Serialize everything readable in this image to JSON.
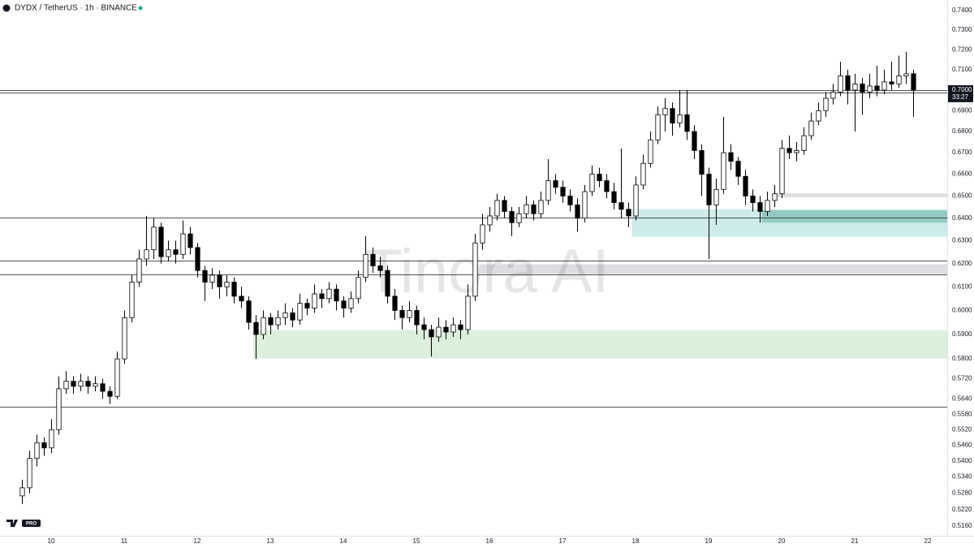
{
  "chart_data": {
    "type": "candlestick",
    "title": "DYDX / TetherUS · 1h · BINANCE",
    "watermark": "Tinora AI",
    "logo_badge": "PRO",
    "ylog": true,
    "xlim": [
      9.3,
      22.267
    ],
    "ylim": [
      0.5125,
      0.7455
    ],
    "xticks": [
      10,
      11,
      12,
      13,
      14,
      15,
      16,
      17,
      18,
      19,
      20,
      21,
      22
    ],
    "yticks": [
      {
        "value": 0.74,
        "label": "0.7400"
      },
      {
        "value": 0.73,
        "label": "0.7300"
      },
      {
        "value": 0.72,
        "label": "0.7200"
      },
      {
        "value": 0.71,
        "label": "0.7100"
      },
      {
        "value": 0.69,
        "label": "0.6900"
      },
      {
        "value": 0.68,
        "label": "0.6800"
      },
      {
        "value": 0.67,
        "label": "0.6700"
      },
      {
        "value": 0.66,
        "label": "0.6600"
      },
      {
        "value": 0.65,
        "label": "0.6500"
      },
      {
        "value": 0.64,
        "label": "0.6400"
      },
      {
        "value": 0.63,
        "label": "0.6300"
      },
      {
        "value": 0.62,
        "label": "0.6200"
      },
      {
        "value": 0.61,
        "label": "0.6100"
      },
      {
        "value": 0.6,
        "label": "0.6000"
      },
      {
        "value": 0.59,
        "label": "0.5900"
      },
      {
        "value": 0.58,
        "label": "0.5800"
      },
      {
        "value": 0.572,
        "label": "0.5720"
      },
      {
        "value": 0.564,
        "label": "0.5640"
      },
      {
        "value": 0.558,
        "label": "0.5580"
      },
      {
        "value": 0.552,
        "label": "0.5520"
      },
      {
        "value": 0.546,
        "label": "0.5460"
      },
      {
        "value": 0.54,
        "label": "0.5400"
      },
      {
        "value": 0.534,
        "label": "0.5340"
      },
      {
        "value": 0.528,
        "label": "0.5280"
      },
      {
        "value": 0.522,
        "label": "0.5220"
      },
      {
        "value": 0.516,
        "label": "0.5160"
      }
    ],
    "last_price": {
      "value": 0.7,
      "label": "0.7000"
    },
    "countdown": "33:27",
    "up_color": "#ffffff",
    "down_color": "#000000",
    "wick_color": "#000000",
    "levels": [
      0.6998,
      0.6987,
      0.6401,
      0.6212,
      0.6152,
      0.561
    ],
    "zones": [
      {
        "from": 12.77,
        "low": 0.5802,
        "high": 0.5918,
        "color": "rgba(76,175,80,0.2)"
      },
      {
        "from": 17.95,
        "low": 0.6317,
        "high": 0.644,
        "color": "rgba(38,166,154,0.22)"
      },
      {
        "from": 19.73,
        "low": 0.638,
        "high": 0.6435,
        "color": "rgba(38,140,120,0.35)"
      },
      {
        "from": 15.86,
        "low": 0.6155,
        "high": 0.6197,
        "color": "rgba(120,123,134,0.25)"
      },
      {
        "from": 19.91,
        "low": 0.6494,
        "high": 0.6512,
        "color": "rgba(120,123,134,0.25)"
      }
    ],
    "candles": [
      [
        9.6,
        0.527,
        0.533,
        0.524,
        0.53
      ],
      [
        9.7,
        0.53,
        0.544,
        0.528,
        0.541
      ],
      [
        9.8,
        0.541,
        0.55,
        0.538,
        0.547
      ],
      [
        9.9,
        0.547,
        0.549,
        0.542,
        0.545
      ],
      [
        10.0,
        0.545,
        0.556,
        0.543,
        0.552
      ],
      [
        10.1,
        0.552,
        0.573,
        0.55,
        0.568
      ],
      [
        10.2,
        0.568,
        0.575,
        0.566,
        0.571
      ],
      [
        10.3,
        0.571,
        0.573,
        0.566,
        0.569
      ],
      [
        10.4,
        0.569,
        0.574,
        0.567,
        0.571
      ],
      [
        10.5,
        0.571,
        0.573,
        0.566,
        0.569
      ],
      [
        10.6,
        0.569,
        0.573,
        0.567,
        0.57
      ],
      [
        10.7,
        0.57,
        0.572,
        0.564,
        0.567
      ],
      [
        10.8,
        0.567,
        0.569,
        0.562,
        0.565
      ],
      [
        10.9,
        0.565,
        0.583,
        0.564,
        0.58
      ],
      [
        11.0,
        0.58,
        0.6,
        0.578,
        0.597
      ],
      [
        11.1,
        0.597,
        0.615,
        0.595,
        0.612
      ],
      [
        11.2,
        0.612,
        0.626,
        0.61,
        0.622
      ],
      [
        11.3,
        0.622,
        0.641,
        0.619,
        0.626
      ],
      [
        11.4,
        0.626,
        0.64,
        0.622,
        0.636
      ],
      [
        11.5,
        0.636,
        0.638,
        0.62,
        0.623
      ],
      [
        11.6,
        0.623,
        0.63,
        0.621,
        0.626
      ],
      [
        11.7,
        0.626,
        0.63,
        0.62,
        0.624
      ],
      [
        11.8,
        0.624,
        0.639,
        0.622,
        0.633
      ],
      [
        11.9,
        0.633,
        0.636,
        0.624,
        0.627
      ],
      [
        12.0,
        0.627,
        0.629,
        0.614,
        0.617
      ],
      [
        12.1,
        0.617,
        0.619,
        0.604,
        0.612
      ],
      [
        12.2,
        0.612,
        0.618,
        0.609,
        0.615
      ],
      [
        12.3,
        0.615,
        0.617,
        0.605,
        0.61
      ],
      [
        12.4,
        0.61,
        0.615,
        0.606,
        0.612
      ],
      [
        12.5,
        0.612,
        0.614,
        0.603,
        0.606
      ],
      [
        12.6,
        0.606,
        0.61,
        0.601,
        0.604
      ],
      [
        12.7,
        0.604,
        0.606,
        0.592,
        0.595
      ],
      [
        12.8,
        0.595,
        0.598,
        0.58,
        0.59
      ],
      [
        12.9,
        0.59,
        0.6,
        0.588,
        0.597
      ],
      [
        13.0,
        0.597,
        0.599,
        0.59,
        0.594
      ],
      [
        13.1,
        0.594,
        0.6,
        0.592,
        0.597
      ],
      [
        13.2,
        0.597,
        0.603,
        0.594,
        0.599
      ],
      [
        13.3,
        0.599,
        0.601,
        0.593,
        0.596
      ],
      [
        13.4,
        0.596,
        0.607,
        0.594,
        0.603
      ],
      [
        13.5,
        0.603,
        0.605,
        0.598,
        0.601
      ],
      [
        13.6,
        0.601,
        0.611,
        0.599,
        0.607
      ],
      [
        13.7,
        0.607,
        0.609,
        0.601,
        0.605
      ],
      [
        13.8,
        0.605,
        0.612,
        0.603,
        0.609
      ],
      [
        13.9,
        0.609,
        0.611,
        0.6,
        0.604
      ],
      [
        14.0,
        0.604,
        0.606,
        0.597,
        0.601
      ],
      [
        14.1,
        0.601,
        0.608,
        0.599,
        0.605
      ],
      [
        14.2,
        0.605,
        0.617,
        0.603,
        0.614
      ],
      [
        14.3,
        0.614,
        0.632,
        0.612,
        0.624
      ],
      [
        14.4,
        0.624,
        0.627,
        0.616,
        0.619
      ],
      [
        14.5,
        0.619,
        0.623,
        0.614,
        0.617
      ],
      [
        14.6,
        0.617,
        0.619,
        0.603,
        0.606
      ],
      [
        14.7,
        0.606,
        0.609,
        0.596,
        0.6
      ],
      [
        14.8,
        0.6,
        0.602,
        0.592,
        0.597
      ],
      [
        14.9,
        0.597,
        0.604,
        0.595,
        0.6
      ],
      [
        15.0,
        0.6,
        0.602,
        0.59,
        0.594
      ],
      [
        15.1,
        0.594,
        0.597,
        0.588,
        0.592
      ],
      [
        15.2,
        0.592,
        0.594,
        0.581,
        0.589
      ],
      [
        15.3,
        0.589,
        0.597,
        0.587,
        0.593
      ],
      [
        15.4,
        0.593,
        0.596,
        0.588,
        0.591
      ],
      [
        15.5,
        0.591,
        0.597,
        0.589,
        0.594
      ],
      [
        15.6,
        0.594,
        0.596,
        0.588,
        0.592
      ],
      [
        15.7,
        0.592,
        0.611,
        0.59,
        0.606
      ],
      [
        15.8,
        0.606,
        0.633,
        0.604,
        0.629
      ],
      [
        15.9,
        0.629,
        0.642,
        0.626,
        0.637
      ],
      [
        16.0,
        0.637,
        0.645,
        0.634,
        0.641
      ],
      [
        16.1,
        0.641,
        0.651,
        0.639,
        0.648
      ],
      [
        16.2,
        0.648,
        0.65,
        0.64,
        0.643
      ],
      [
        16.3,
        0.643,
        0.645,
        0.632,
        0.638
      ],
      [
        16.4,
        0.638,
        0.645,
        0.636,
        0.642
      ],
      [
        16.5,
        0.642,
        0.65,
        0.64,
        0.646
      ],
      [
        16.6,
        0.646,
        0.648,
        0.639,
        0.642
      ],
      [
        16.7,
        0.642,
        0.652,
        0.64,
        0.648
      ],
      [
        16.8,
        0.648,
        0.667,
        0.646,
        0.657
      ],
      [
        16.9,
        0.657,
        0.66,
        0.651,
        0.654
      ],
      [
        17.0,
        0.654,
        0.657,
        0.647,
        0.65
      ],
      [
        17.1,
        0.65,
        0.653,
        0.643,
        0.646
      ],
      [
        17.2,
        0.646,
        0.649,
        0.634,
        0.64
      ],
      [
        17.3,
        0.64,
        0.655,
        0.638,
        0.652
      ],
      [
        17.4,
        0.652,
        0.664,
        0.65,
        0.66
      ],
      [
        17.5,
        0.66,
        0.663,
        0.654,
        0.657
      ],
      [
        17.6,
        0.657,
        0.66,
        0.649,
        0.652
      ],
      [
        17.7,
        0.652,
        0.656,
        0.644,
        0.647
      ],
      [
        17.8,
        0.647,
        0.672,
        0.64,
        0.644
      ],
      [
        17.9,
        0.644,
        0.647,
        0.636,
        0.641
      ],
      [
        18.0,
        0.641,
        0.659,
        0.639,
        0.655
      ],
      [
        18.1,
        0.655,
        0.669,
        0.653,
        0.665
      ],
      [
        18.2,
        0.665,
        0.68,
        0.663,
        0.676
      ],
      [
        18.3,
        0.676,
        0.692,
        0.674,
        0.688
      ],
      [
        18.4,
        0.688,
        0.696,
        0.68,
        0.691
      ],
      [
        18.5,
        0.691,
        0.694,
        0.678,
        0.684
      ],
      [
        18.6,
        0.684,
        0.7,
        0.682,
        0.688
      ],
      [
        18.7,
        0.688,
        0.7,
        0.676,
        0.68
      ],
      [
        18.8,
        0.68,
        0.683,
        0.667,
        0.671
      ],
      [
        18.9,
        0.671,
        0.674,
        0.65,
        0.66
      ],
      [
        19.0,
        0.66,
        0.663,
        0.622,
        0.646
      ],
      [
        19.1,
        0.646,
        0.658,
        0.637,
        0.653
      ],
      [
        19.2,
        0.653,
        0.687,
        0.651,
        0.67
      ],
      [
        19.3,
        0.67,
        0.674,
        0.662,
        0.666
      ],
      [
        19.4,
        0.666,
        0.668,
        0.655,
        0.659
      ],
      [
        19.5,
        0.659,
        0.662,
        0.646,
        0.65
      ],
      [
        19.6,
        0.65,
        0.653,
        0.643,
        0.647
      ],
      [
        19.7,
        0.647,
        0.65,
        0.638,
        0.643
      ],
      [
        19.8,
        0.643,
        0.652,
        0.641,
        0.648
      ],
      [
        19.9,
        0.648,
        0.655,
        0.645,
        0.651
      ],
      [
        20.0,
        0.651,
        0.676,
        0.649,
        0.672
      ],
      [
        20.1,
        0.672,
        0.678,
        0.667,
        0.67
      ],
      [
        20.2,
        0.67,
        0.675,
        0.666,
        0.671
      ],
      [
        20.3,
        0.671,
        0.682,
        0.669,
        0.678
      ],
      [
        20.4,
        0.678,
        0.689,
        0.676,
        0.685
      ],
      [
        20.5,
        0.685,
        0.694,
        0.683,
        0.69
      ],
      [
        20.6,
        0.69,
        0.699,
        0.687,
        0.696
      ],
      [
        20.7,
        0.696,
        0.703,
        0.693,
        0.699
      ],
      [
        20.8,
        0.699,
        0.714,
        0.697,
        0.707
      ],
      [
        20.9,
        0.707,
        0.71,
        0.693,
        0.7
      ],
      [
        21.0,
        0.7,
        0.708,
        0.68,
        0.703
      ],
      [
        21.1,
        0.703,
        0.706,
        0.688,
        0.699
      ],
      [
        21.2,
        0.699,
        0.708,
        0.696,
        0.702
      ],
      [
        21.3,
        0.702,
        0.712,
        0.697,
        0.7
      ],
      [
        21.4,
        0.7,
        0.71,
        0.698,
        0.704
      ],
      [
        21.5,
        0.704,
        0.714,
        0.7,
        0.703
      ],
      [
        21.6,
        0.703,
        0.717,
        0.701,
        0.707
      ],
      [
        21.7,
        0.707,
        0.719,
        0.703,
        0.708
      ],
      [
        21.8,
        0.708,
        0.71,
        0.687,
        0.7
      ]
    ]
  }
}
